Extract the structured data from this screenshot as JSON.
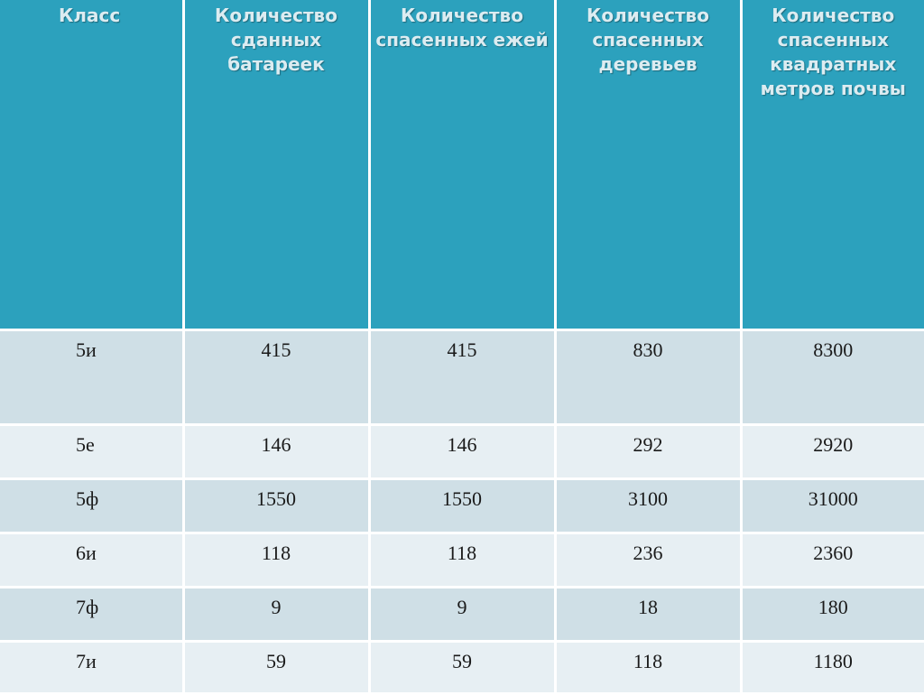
{
  "table": {
    "headers": [
      "Класс",
      "Количество сданных батареек",
      "Количество спасенных ежей",
      "Количество спасенных деревьев",
      "Количество спасенных квадратных метров почвы"
    ],
    "rows": [
      [
        "5и",
        "415",
        "415",
        "830",
        "8300"
      ],
      [
        "5е",
        "146",
        "146",
        "292",
        "2920"
      ],
      [
        "5ф",
        "1550",
        "1550",
        "3100",
        "31000"
      ],
      [
        "6и",
        "118",
        "118",
        "236",
        "2360"
      ],
      [
        "7ф",
        "9",
        "9",
        "18",
        "180"
      ],
      [
        "7и",
        "59",
        "59",
        "118",
        "1180"
      ]
    ]
  },
  "colors": {
    "header_bg": "#2ca1bd",
    "header_text": "#dcecf1",
    "row_odd": "#cfdfe6",
    "row_even": "#e7eff3"
  }
}
